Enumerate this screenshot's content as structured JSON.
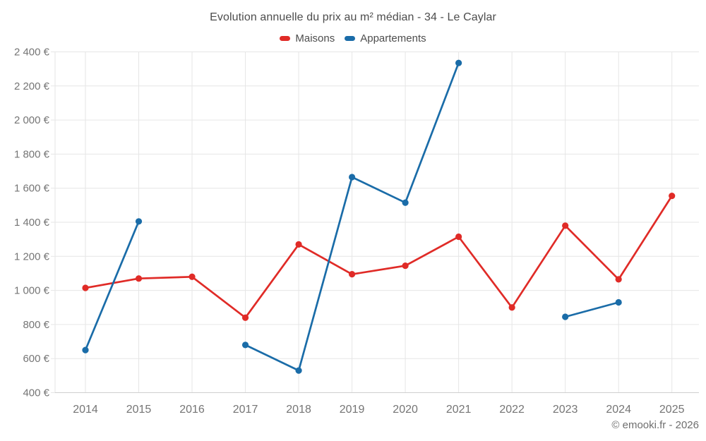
{
  "title": "Evolution annuelle du prix au m² médian - 34 - Le Caylar",
  "footer": "© emooki.fr - 2026",
  "legend": {
    "items": [
      {
        "label": "Maisons",
        "color": "#e02b27"
      },
      {
        "label": "Appartements",
        "color": "#1a6ca8"
      }
    ]
  },
  "colors": {
    "maisons": "#e02b27",
    "appartements": "#1a6ca8",
    "gridline": "#e6e6e6",
    "axis_line": "#cfcfcf",
    "tick_label": "#757575",
    "title_text": "#4d4d4d",
    "footer_text": "#6e6e6e",
    "background": "#ffffff"
  },
  "chart_data": {
    "type": "line",
    "title": "Evolution annuelle du prix au m² médian - 34 - Le Caylar",
    "xlabel": "",
    "ylabel": "",
    "categories": [
      2014,
      2015,
      2016,
      2017,
      2018,
      2019,
      2020,
      2021,
      2022,
      2023,
      2024,
      2025
    ],
    "series": [
      {
        "name": "Maisons",
        "color": "#e02b27",
        "values": [
          1015,
          1070,
          1080,
          840,
          1270,
          1095,
          1145,
          1315,
          900,
          1380,
          1065,
          1555
        ]
      },
      {
        "name": "Appartements",
        "color": "#1a6ca8",
        "values": [
          650,
          1405,
          null,
          680,
          530,
          1665,
          1515,
          2335,
          null,
          845,
          930,
          null
        ]
      }
    ],
    "ylim": [
      400,
      2400
    ],
    "y_step": 200,
    "y_tick_format": "{value} €",
    "grid": true,
    "legend_position": "top",
    "marker": "circle",
    "missing_data_policy": "gap"
  }
}
